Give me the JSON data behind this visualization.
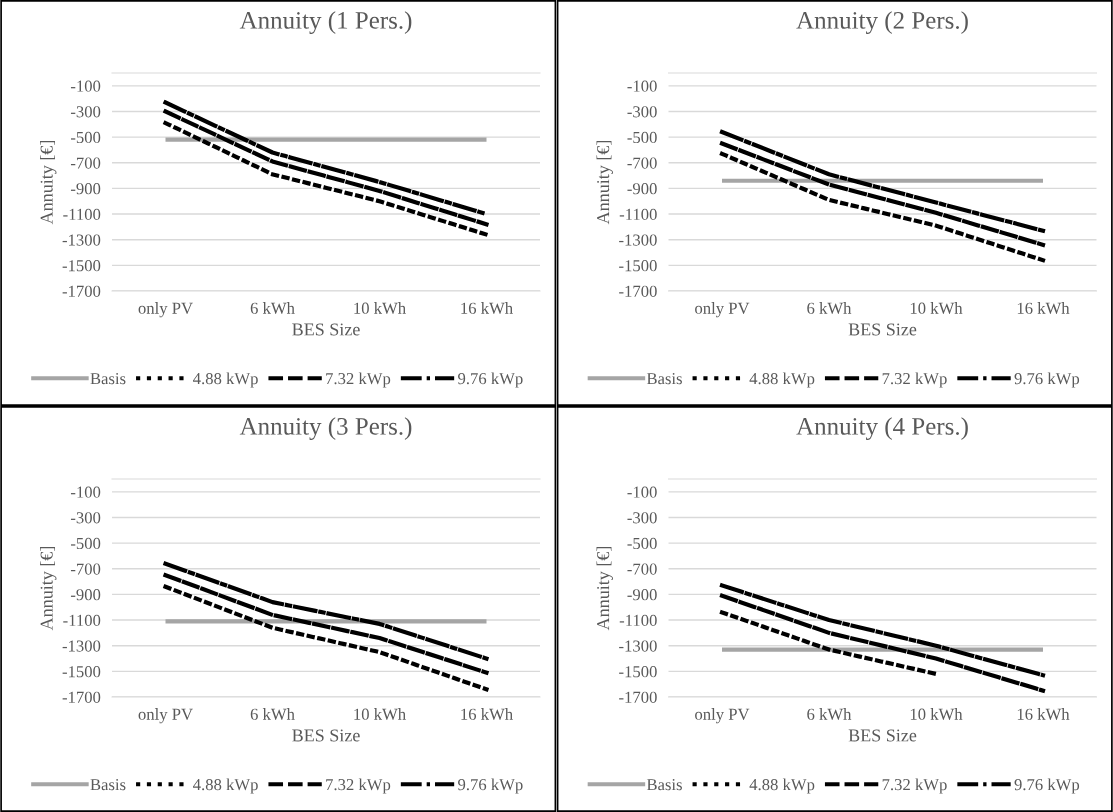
{
  "chart_data": [
    {
      "type": "line",
      "title": "Annuity (1 Pers.)",
      "xlabel": "BES Size",
      "ylabel": "Annuity [€]",
      "categories": [
        "only PV",
        "6 kWh",
        "10 kWh",
        "16 kWh"
      ],
      "ylim": [
        -1700,
        0
      ],
      "yticks": [
        -1700,
        -1500,
        -1300,
        -1100,
        -900,
        -700,
        -500,
        -300,
        -100
      ],
      "grid": "y",
      "legend": "bottom",
      "marker": "none",
      "series": [
        {
          "name": "Basis",
          "color": "#a5a5a5",
          "line_style": "solid",
          "values": [
            -520,
            -520,
            -520,
            -520
          ]
        },
        {
          "name": "4.88 kWp",
          "color": "#000000",
          "line_style": "dotted",
          "values": [
            -390,
            -790,
            -1000,
            -1260
          ]
        },
        {
          "name": "7.32 kWp",
          "color": "#000000",
          "line_style": "dashed",
          "values": [
            -300,
            -690,
            -920,
            -1180
          ]
        },
        {
          "name": "9.76 kWp",
          "color": "#000000",
          "line_style": "dashdot",
          "values": [
            -230,
            -620,
            -850,
            -1100
          ]
        }
      ]
    },
    {
      "type": "line",
      "title": "Annuity (2 Pers.)",
      "xlabel": "BES Size",
      "ylabel": "Annuity [€]",
      "categories": [
        "only PV",
        "6 kWh",
        "10 kWh",
        "16 kWh"
      ],
      "ylim": [
        -1700,
        0
      ],
      "yticks": [
        -1700,
        -1500,
        -1300,
        -1100,
        -900,
        -700,
        -500,
        -300,
        -100
      ],
      "grid": "y",
      "legend": "bottom",
      "marker": "none",
      "series": [
        {
          "name": "Basis",
          "color": "#a5a5a5",
          "line_style": "solid",
          "values": [
            -840,
            -840,
            -840,
            -840
          ]
        },
        {
          "name": "4.88 kWp",
          "color": "#000000",
          "line_style": "dotted",
          "values": [
            -630,
            -990,
            -1190,
            -1460
          ]
        },
        {
          "name": "7.32 kWp",
          "color": "#000000",
          "line_style": "dashed",
          "values": [
            -550,
            -870,
            -1090,
            -1340
          ]
        },
        {
          "name": "9.76 kWp",
          "color": "#000000",
          "line_style": "dashdot",
          "values": [
            -460,
            -790,
            -1010,
            -1230
          ]
        }
      ]
    },
    {
      "type": "line",
      "title": "Annuity (3 Pers.)",
      "xlabel": "BES Size",
      "ylabel": "Annuity [€]",
      "categories": [
        "only PV",
        "6 kWh",
        "10 kWh",
        "16 kWh"
      ],
      "ylim": [
        -1700,
        0
      ],
      "yticks": [
        -1700,
        -1500,
        -1300,
        -1100,
        -900,
        -700,
        -500,
        -300,
        -100
      ],
      "grid": "y",
      "legend": "bottom",
      "marker": "none",
      "series": [
        {
          "name": "Basis",
          "color": "#a5a5a5",
          "line_style": "solid",
          "values": [
            -1110,
            -1110,
            -1110,
            -1110
          ]
        },
        {
          "name": "4.88 kWp",
          "color": "#000000",
          "line_style": "dotted",
          "values": [
            -840,
            -1160,
            -1350,
            -1640
          ]
        },
        {
          "name": "7.32 kWp",
          "color": "#000000",
          "line_style": "dashed",
          "values": [
            -750,
            -1060,
            -1240,
            -1510
          ]
        },
        {
          "name": "9.76 kWp",
          "color": "#000000",
          "line_style": "dashdot",
          "values": [
            -660,
            -960,
            -1130,
            -1400
          ]
        }
      ]
    },
    {
      "type": "line",
      "title": "Annuity (4 Pers.)",
      "xlabel": "BES Size",
      "ylabel": "Annuity [€]",
      "categories": [
        "only PV",
        "6 kWh",
        "10 kWh",
        "16 kWh"
      ],
      "ylim": [
        -1700,
        0
      ],
      "yticks": [
        -1700,
        -1500,
        -1300,
        -1100,
        -900,
        -700,
        -500,
        -300,
        -100
      ],
      "grid": "y",
      "legend": "bottom",
      "marker": "none",
      "series": [
        {
          "name": "Basis",
          "color": "#a5a5a5",
          "line_style": "solid",
          "values": [
            -1330,
            -1330,
            -1330,
            -1330
          ]
        },
        {
          "name": "4.88 kWp",
          "color": "#000000",
          "line_style": "dotted",
          "values": [
            -1040,
            -1330,
            -1520,
            null
          ]
        },
        {
          "name": "7.32 kWp",
          "color": "#000000",
          "line_style": "dashed",
          "values": [
            -910,
            -1200,
            -1400,
            -1650
          ]
        },
        {
          "name": "9.76 kWp",
          "color": "#000000",
          "line_style": "dashdot",
          "values": [
            -830,
            -1100,
            -1300,
            -1530
          ]
        }
      ]
    }
  ]
}
